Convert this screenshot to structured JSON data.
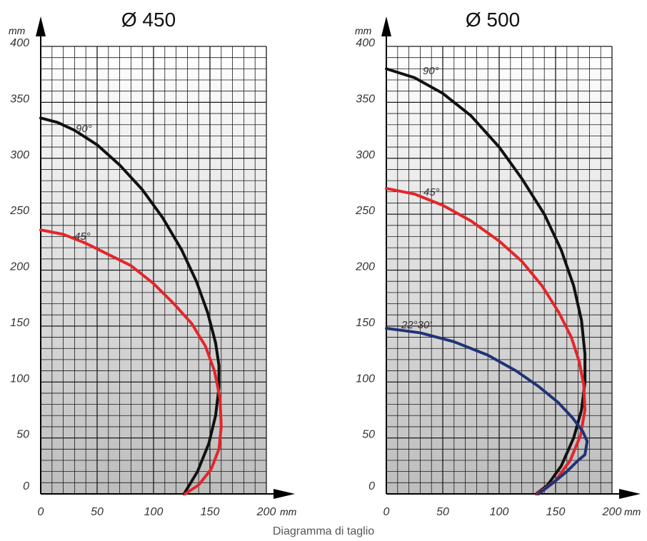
{
  "caption": "Diagramma di taglio",
  "colors": {
    "black": "#111111",
    "red": "#e3262b",
    "blue": "#1f3377"
  },
  "chart_data": [
    {
      "type": "line",
      "title": "Ø 450",
      "xlabel": "mm",
      "ylabel": "mm",
      "xlim": [
        0,
        200
      ],
      "ylim": [
        0,
        400
      ],
      "x_ticks": [
        "0",
        "50",
        "100",
        "150",
        "200"
      ],
      "y_ticks": [
        "0",
        "50",
        "100",
        "150",
        "200",
        "250",
        "300",
        "350",
        "400"
      ],
      "grid": true,
      "series": [
        {
          "name": "90°",
          "color": "black",
          "points": [
            [
              0,
              336
            ],
            [
              15,
              332
            ],
            [
              30,
              325
            ],
            [
              50,
              312
            ],
            [
              70,
              294
            ],
            [
              90,
              272
            ],
            [
              108,
              247
            ],
            [
              125,
              218
            ],
            [
              138,
              190
            ],
            [
              148,
              162
            ],
            [
              155,
              135
            ],
            [
              158,
              115
            ],
            [
              158,
              95
            ],
            [
              155,
              70
            ],
            [
              149,
              45
            ],
            [
              139,
              20
            ],
            [
              127,
              0
            ]
          ]
        },
        {
          "name": "45°",
          "color": "red",
          "points": [
            [
              0,
              236
            ],
            [
              20,
              232
            ],
            [
              40,
              224
            ],
            [
              60,
              214
            ],
            [
              80,
              204
            ],
            [
              100,
              188
            ],
            [
              118,
              170
            ],
            [
              134,
              152
            ],
            [
              146,
              132
            ],
            [
              154,
              110
            ],
            [
              159,
              85
            ],
            [
              160,
              60
            ],
            [
              158,
              40
            ],
            [
              151,
              22
            ],
            [
              140,
              8
            ],
            [
              128,
              0
            ]
          ]
        }
      ]
    },
    {
      "type": "line",
      "title": "Ø 500",
      "xlabel": "mm",
      "ylabel": "mm",
      "xlim": [
        0,
        200
      ],
      "ylim": [
        0,
        400
      ],
      "x_ticks": [
        "0",
        "50",
        "100",
        "150",
        "200"
      ],
      "y_ticks": [
        "0",
        "50",
        "100",
        "150",
        "200",
        "250",
        "300",
        "350",
        "400"
      ],
      "grid": true,
      "series": [
        {
          "name": "90°",
          "color": "black",
          "points": [
            [
              0,
              380
            ],
            [
              25,
              372
            ],
            [
              50,
              358
            ],
            [
              75,
              338
            ],
            [
              100,
              310
            ],
            [
              120,
              282
            ],
            [
              140,
              250
            ],
            [
              155,
              218
            ],
            [
              166,
              186
            ],
            [
              173,
              155
            ],
            [
              176,
              125
            ],
            [
              176,
              100
            ],
            [
              173,
              75
            ],
            [
              166,
              50
            ],
            [
              155,
              25
            ],
            [
              143,
              8
            ],
            [
              133,
              0
            ]
          ]
        },
        {
          "name": "45°",
          "color": "red",
          "points": [
            [
              0,
              273
            ],
            [
              25,
              268
            ],
            [
              50,
              258
            ],
            [
              75,
              244
            ],
            [
              100,
              226
            ],
            [
              120,
              208
            ],
            [
              138,
              186
            ],
            [
              153,
              162
            ],
            [
              164,
              140
            ],
            [
              171,
              118
            ],
            [
              175,
              97
            ],
            [
              176,
              75
            ],
            [
              172,
              52
            ],
            [
              163,
              30
            ],
            [
              150,
              12
            ],
            [
              134,
              0
            ]
          ]
        },
        {
          "name": "22°30'",
          "color": "blue",
          "points": [
            [
              0,
              148
            ],
            [
              30,
              144
            ],
            [
              60,
              136
            ],
            [
              90,
              124
            ],
            [
              115,
              110
            ],
            [
              135,
              96
            ],
            [
              152,
              82
            ],
            [
              165,
              68
            ],
            [
              174,
              56
            ],
            [
              178,
              47
            ],
            [
              176,
              35
            ],
            [
              170,
              30
            ],
            [
              160,
              20
            ],
            [
              148,
              10
            ],
            [
              135,
              0
            ]
          ]
        }
      ]
    }
  ]
}
